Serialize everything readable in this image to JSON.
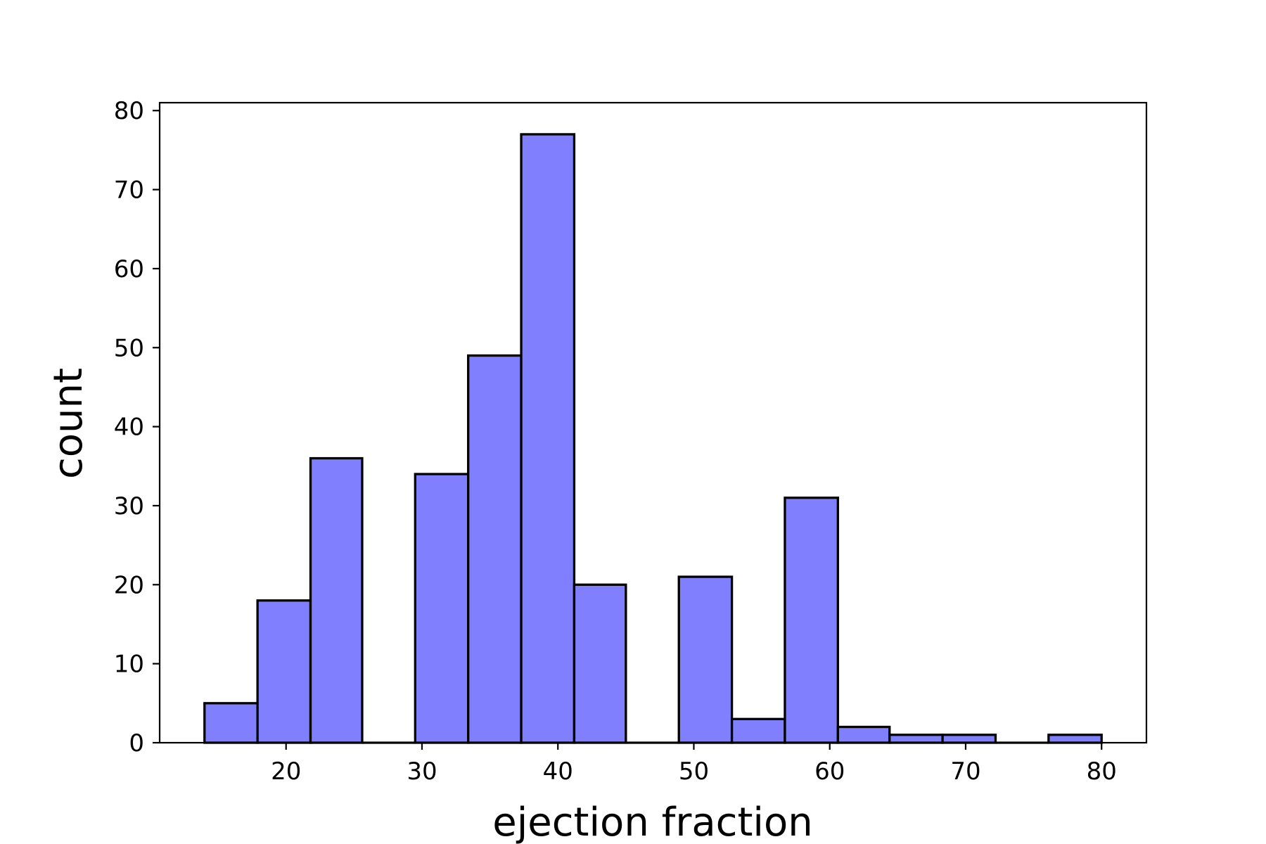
{
  "chart_data": {
    "type": "bar",
    "subtype": "histogram",
    "xlabel": "ejection fraction",
    "ylabel": "count",
    "bar_color": "#8080ff",
    "edge_color": "#000000",
    "xlim": [
      10.7,
      83.3
    ],
    "ylim": [
      0,
      81
    ],
    "xticks": [
      20,
      30,
      40,
      50,
      60,
      70,
      80
    ],
    "yticks": [
      0,
      10,
      20,
      30,
      40,
      50,
      60,
      70,
      80
    ],
    "bins": [
      {
        "x0": 14.0,
        "x1": 17.9,
        "count": 5
      },
      {
        "x0": 17.9,
        "x1": 21.8,
        "count": 18
      },
      {
        "x0": 21.8,
        "x1": 25.6,
        "count": 36
      },
      {
        "x0": 25.6,
        "x1": 29.5,
        "count": 0
      },
      {
        "x0": 29.5,
        "x1": 33.4,
        "count": 34
      },
      {
        "x0": 33.4,
        "x1": 37.3,
        "count": 49
      },
      {
        "x0": 37.3,
        "x1": 41.2,
        "count": 77
      },
      {
        "x0": 41.2,
        "x1": 45.0,
        "count": 20
      },
      {
        "x0": 45.0,
        "x1": 48.9,
        "count": 0
      },
      {
        "x0": 48.9,
        "x1": 52.8,
        "count": 21
      },
      {
        "x0": 52.8,
        "x1": 56.7,
        "count": 3
      },
      {
        "x0": 56.7,
        "x1": 60.6,
        "count": 31
      },
      {
        "x0": 60.6,
        "x1": 64.4,
        "count": 2
      },
      {
        "x0": 64.4,
        "x1": 68.3,
        "count": 1
      },
      {
        "x0": 68.3,
        "x1": 72.2,
        "count": 1
      },
      {
        "x0": 72.2,
        "x1": 76.1,
        "count": 0
      },
      {
        "x0": 76.1,
        "x1": 80.0,
        "count": 1
      }
    ]
  }
}
